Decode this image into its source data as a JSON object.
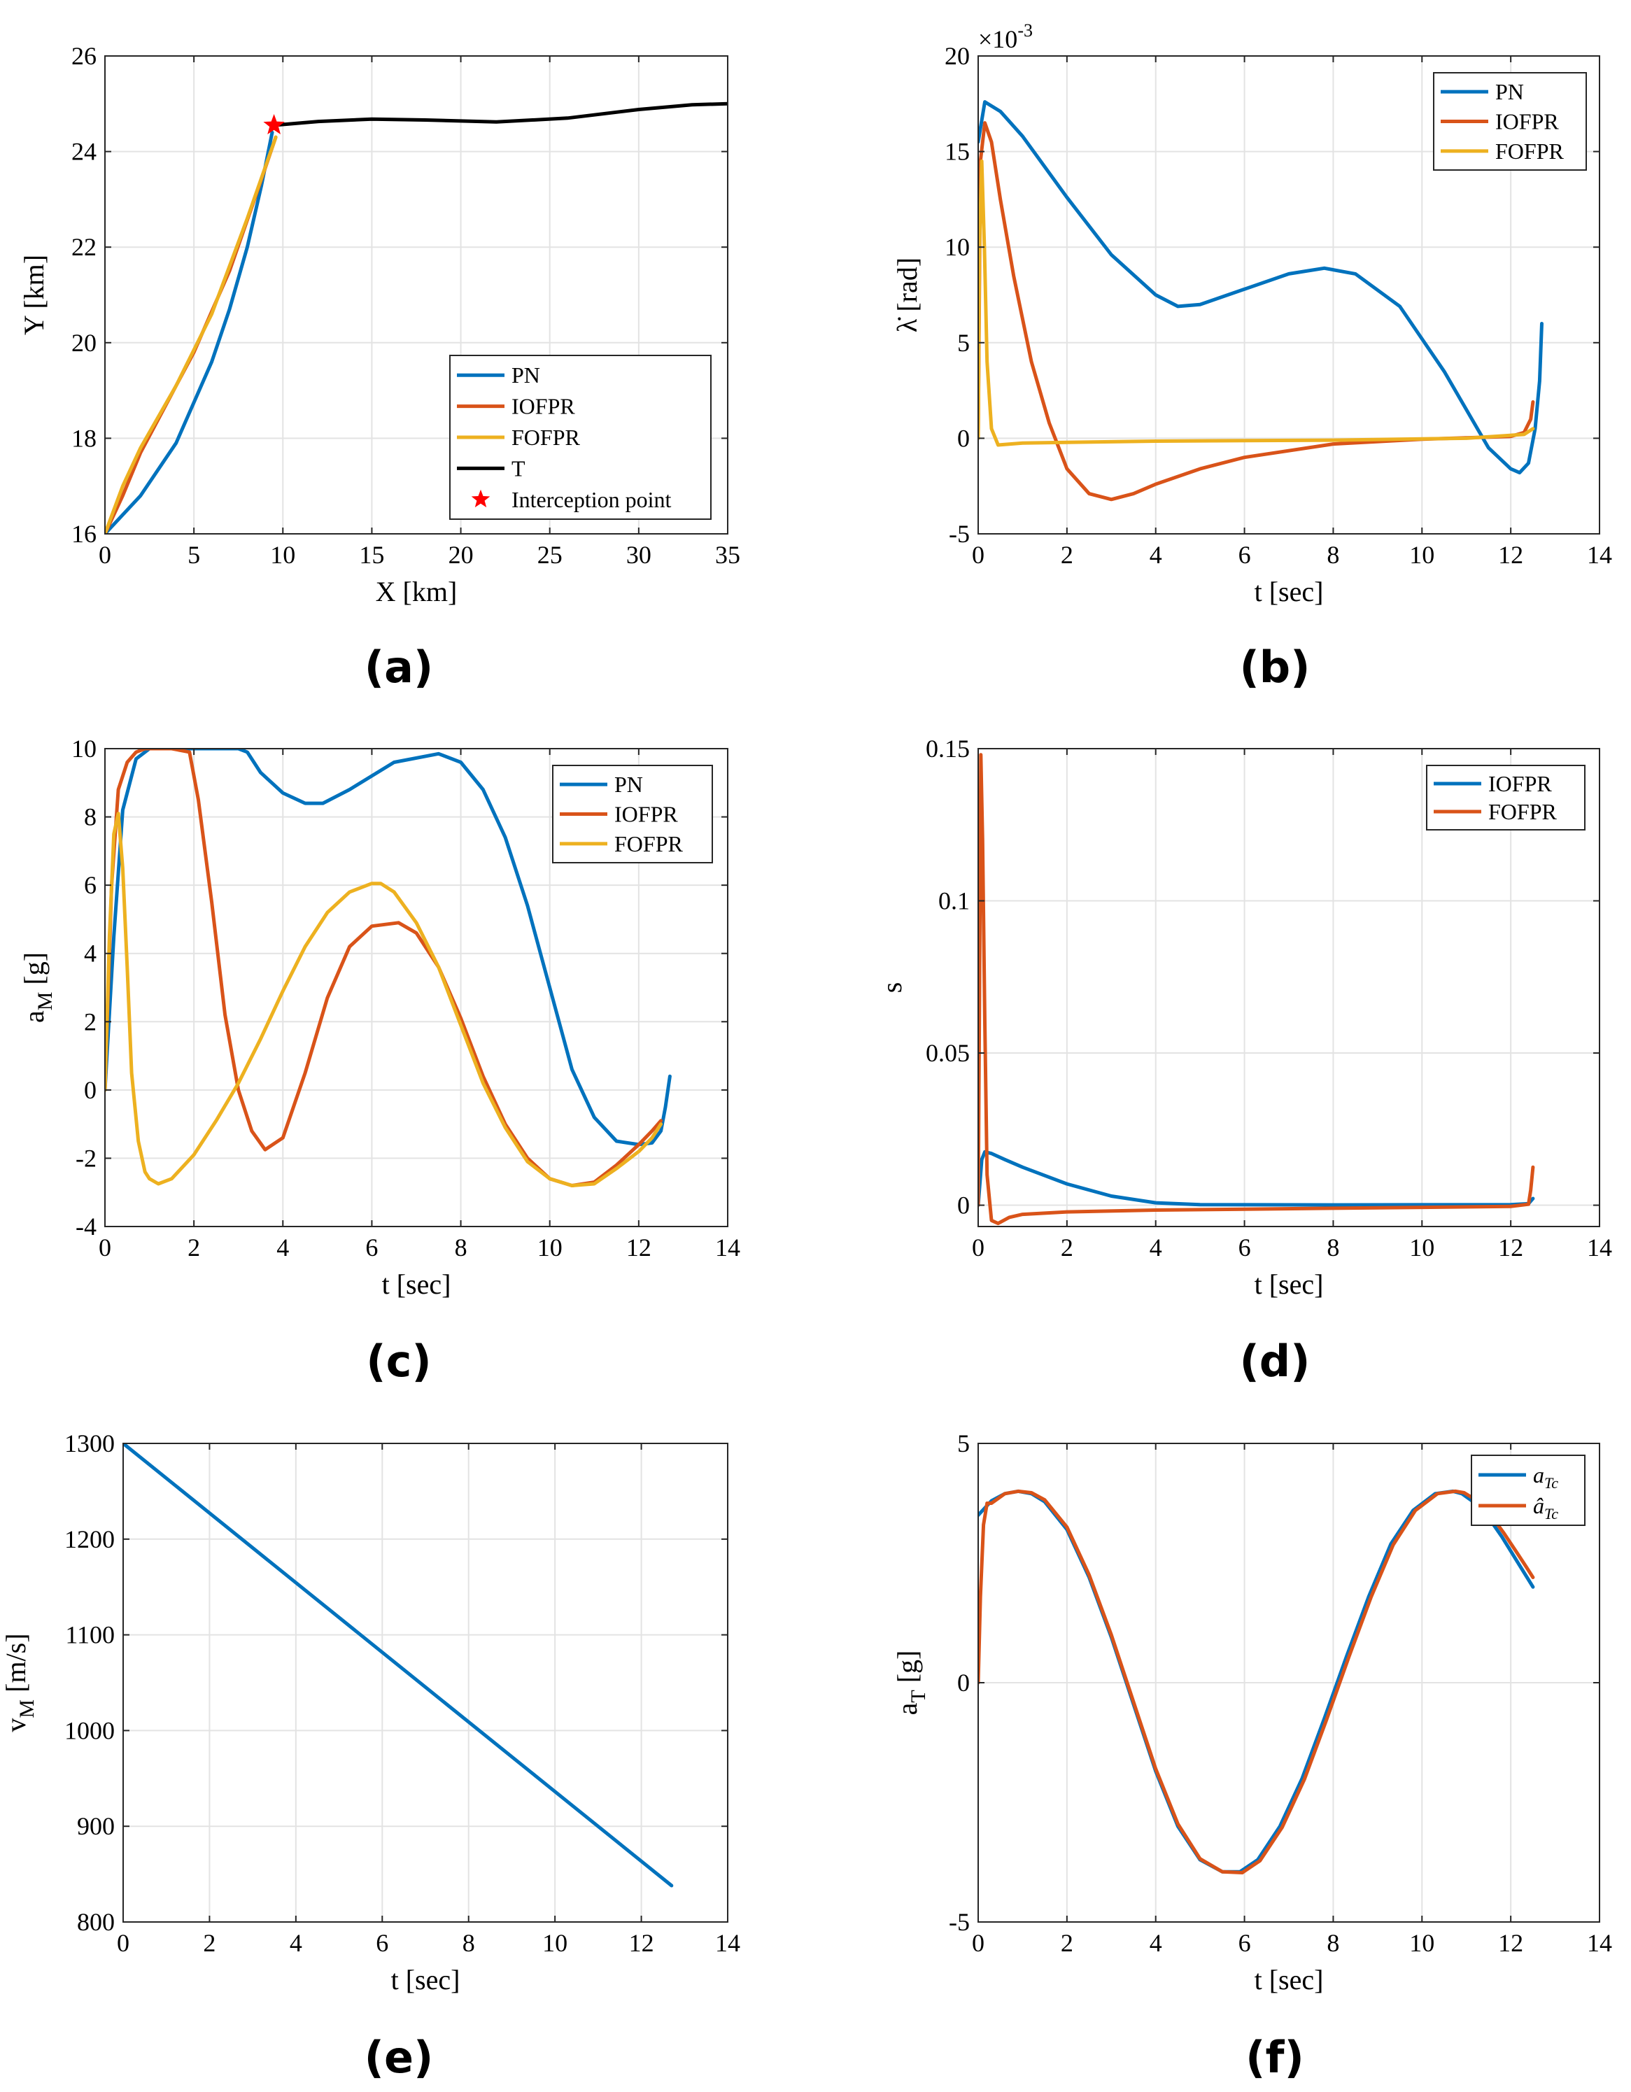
{
  "colors": {
    "blue": "#0072BD",
    "orange": "#D95319",
    "yellow": "#EDB120",
    "black": "#000000",
    "red": "#FF0000",
    "grid": "#E3E3E3"
  },
  "chart_data": [
    {
      "id": "a",
      "label": "(a)",
      "type": "line",
      "xlabel": "X [km]",
      "ylabel": "Y [km]",
      "xlim": [
        0,
        35
      ],
      "ylim": [
        16,
        26
      ],
      "xticks": [
        0,
        5,
        10,
        15,
        20,
        25,
        30,
        35
      ],
      "yticks": [
        16,
        18,
        20,
        22,
        24,
        26
      ],
      "grid": true,
      "legend_position": "bottom-right",
      "series": [
        {
          "name": "PN",
          "color": "blue",
          "x": [
            0,
            2,
            4,
            6,
            7,
            8,
            8.8,
            9.4
          ],
          "y": [
            16,
            16.8,
            17.9,
            19.6,
            20.7,
            22.0,
            23.3,
            24.4
          ]
        },
        {
          "name": "IOFPR",
          "color": "orange",
          "x": [
            0,
            1,
            2,
            3,
            5,
            7,
            8.5,
            9.6
          ],
          "y": [
            16,
            16.8,
            17.7,
            18.4,
            19.8,
            21.5,
            23.1,
            24.3
          ]
        },
        {
          "name": "FOFPR",
          "color": "yellow",
          "x": [
            0,
            1,
            2,
            4,
            6,
            8,
            9.6
          ],
          "y": [
            16,
            17.0,
            17.8,
            19.1,
            20.6,
            22.6,
            24.3
          ]
        },
        {
          "name": "T",
          "color": "black",
          "x": [
            9.5,
            12,
            15,
            18,
            22,
            26,
            30,
            33,
            35
          ],
          "y": [
            24.55,
            24.63,
            24.68,
            24.66,
            24.62,
            24.7,
            24.88,
            24.98,
            25.0
          ]
        },
        {
          "name": "Interception point",
          "color": "red",
          "marker": "star",
          "x": [
            9.5
          ],
          "y": [
            24.55
          ]
        }
      ]
    },
    {
      "id": "b",
      "label": "(b)",
      "type": "line",
      "xlabel": "t [sec]",
      "ylabel": "λ̇ [rad]",
      "exponent": "×10",
      "exponent_power": "-3",
      "xlim": [
        0,
        14
      ],
      "ylim": [
        -5,
        20
      ],
      "xticks": [
        0,
        2,
        4,
        6,
        8,
        10,
        12,
        14
      ],
      "yticks": [
        -5,
        0,
        5,
        10,
        15,
        20
      ],
      "grid": true,
      "legend_position": "top-right",
      "series": [
        {
          "name": "PN",
          "color": "blue",
          "x": [
            0,
            0.15,
            0.5,
            1,
            2,
            3,
            4,
            4.5,
            5,
            6,
            7,
            7.8,
            8.5,
            9.5,
            10.5,
            11.5,
            12,
            12.2,
            12.4,
            12.55,
            12.65,
            12.7
          ],
          "y": [
            15.5,
            17.6,
            17.1,
            15.8,
            12.6,
            9.6,
            7.5,
            6.9,
            7.0,
            7.8,
            8.6,
            8.9,
            8.6,
            6.9,
            3.5,
            -0.5,
            -1.6,
            -1.8,
            -1.3,
            0.5,
            3.0,
            6.0
          ]
        },
        {
          "name": "IOFPR",
          "color": "orange",
          "x": [
            0,
            0.05,
            0.15,
            0.3,
            0.5,
            0.8,
            1.2,
            1.6,
            2,
            2.5,
            3,
            3.5,
            4,
            5,
            6,
            8,
            10,
            12,
            12.3,
            12.45,
            12.5
          ],
          "y": [
            0,
            14.5,
            16.5,
            15.5,
            12.5,
            8.5,
            4.0,
            0.8,
            -1.6,
            -2.9,
            -3.2,
            -2.9,
            -2.4,
            -1.6,
            -1.0,
            -0.3,
            -0.05,
            0.1,
            0.3,
            1.0,
            1.9
          ]
        },
        {
          "name": "FOFPR",
          "color": "yellow",
          "x": [
            0,
            0.03,
            0.08,
            0.14,
            0.2,
            0.3,
            0.45,
            1,
            4,
            8,
            11,
            12.3,
            12.5
          ],
          "y": [
            0,
            10,
            14.5,
            10,
            4,
            0.5,
            -0.35,
            -0.25,
            -0.15,
            -0.1,
            0,
            0.2,
            0.5
          ]
        }
      ]
    },
    {
      "id": "c",
      "label": "(c)",
      "type": "line",
      "xlabel": "t [sec]",
      "ylabel": "a",
      "ylabel_sub": "M",
      "ylabel_unit": " [g]",
      "xlim": [
        0,
        14
      ],
      "ylim": [
        -4,
        10
      ],
      "xticks": [
        0,
        2,
        4,
        6,
        8,
        10,
        12,
        14
      ],
      "yticks": [
        -4,
        -2,
        0,
        2,
        4,
        6,
        8,
        10
      ],
      "grid": true,
      "legend_position": "top-right",
      "series": [
        {
          "name": "PN",
          "color": "blue",
          "x": [
            0,
            0.2,
            0.4,
            0.7,
            1.0,
            1.5,
            2,
            3,
            3.2,
            3.5,
            4,
            4.5,
            4.9,
            5.5,
            6.5,
            7.5,
            8,
            8.5,
            9,
            9.5,
            10,
            10.5,
            11,
            11.5,
            12,
            12.3,
            12.5,
            12.6,
            12.7
          ],
          "y": [
            0,
            4.5,
            8.2,
            9.7,
            10,
            10,
            10,
            10,
            9.9,
            9.3,
            8.7,
            8.4,
            8.4,
            8.8,
            9.6,
            9.85,
            9.6,
            8.8,
            7.4,
            5.4,
            3.0,
            0.6,
            -0.8,
            -1.5,
            -1.6,
            -1.55,
            -1.2,
            -0.5,
            0.4
          ]
        },
        {
          "name": "IOFPR",
          "color": "orange",
          "x": [
            0,
            0.15,
            0.3,
            0.5,
            0.7,
            0.9,
            1.2,
            1.5,
            1.9,
            2.1,
            2.4,
            2.7,
            3.0,
            3.3,
            3.6,
            4.0,
            4.5,
            5.0,
            5.5,
            6.0,
            6.6,
            7.0,
            7.5,
            8.0,
            8.5,
            9.0,
            9.5,
            10.0,
            10.5,
            11.0,
            11.5,
            12.0,
            12.3,
            12.5
          ],
          "y": [
            0,
            6,
            8.8,
            9.6,
            9.9,
            10,
            10,
            10,
            9.9,
            8.5,
            5.5,
            2.2,
            0,
            -1.2,
            -1.75,
            -1.4,
            0.5,
            2.7,
            4.2,
            4.8,
            4.9,
            4.6,
            3.6,
            2.1,
            0.4,
            -1.0,
            -2.0,
            -2.6,
            -2.8,
            -2.7,
            -2.2,
            -1.6,
            -1.2,
            -0.9
          ]
        },
        {
          "name": "FOFPR",
          "color": "yellow",
          "x": [
            0,
            0.1,
            0.2,
            0.3,
            0.4,
            0.5,
            0.6,
            0.75,
            0.9,
            1.0,
            1.2,
            1.5,
            2.0,
            2.5,
            3.0,
            3.5,
            4.0,
            4.5,
            5.0,
            5.5,
            6.0,
            6.2,
            6.5,
            7.0,
            7.5,
            8.0,
            8.5,
            9.0,
            9.5,
            10.0,
            10.5,
            11.0,
            11.5,
            12.0,
            12.3,
            12.5
          ],
          "y": [
            0,
            4.5,
            7.5,
            8.1,
            6.5,
            3.6,
            0.5,
            -1.5,
            -2.4,
            -2.6,
            -2.75,
            -2.6,
            -1.9,
            -0.9,
            0.2,
            1.5,
            2.9,
            4.2,
            5.2,
            5.8,
            6.05,
            6.05,
            5.8,
            4.9,
            3.6,
            1.9,
            0.2,
            -1.1,
            -2.1,
            -2.6,
            -2.8,
            -2.75,
            -2.3,
            -1.8,
            -1.4,
            -1.0
          ]
        }
      ]
    },
    {
      "id": "d",
      "label": "(d)",
      "type": "line",
      "xlabel": "t [sec]",
      "ylabel": "s",
      "xlim": [
        0,
        14
      ],
      "ylim": [
        -0.007,
        0.15
      ],
      "xticks": [
        0,
        2,
        4,
        6,
        8,
        10,
        12,
        14
      ],
      "yticks": [
        0,
        0.05,
        0.1,
        0.15
      ],
      "grid": true,
      "legend_position": "top-right",
      "series": [
        {
          "name": "IOFPR",
          "color": "blue",
          "x": [
            0,
            0.08,
            0.15,
            0.3,
            0.6,
            1,
            2,
            3,
            4,
            5,
            8,
            12,
            12.4,
            12.5
          ],
          "y": [
            0,
            0.015,
            0.0175,
            0.017,
            0.015,
            0.0125,
            0.007,
            0.003,
            0.0008,
            0.0002,
            0.0001,
            0.0002,
            0.0005,
            0.0022
          ]
        },
        {
          "name": "FOFPR",
          "color": "orange",
          "x": [
            0,
            0.03,
            0.06,
            0.1,
            0.15,
            0.2,
            0.3,
            0.45,
            0.7,
            1,
            2,
            4,
            8,
            12,
            12.4,
            12.45,
            12.5
          ],
          "y": [
            0,
            0.07,
            0.148,
            0.12,
            0.06,
            0.01,
            -0.005,
            -0.006,
            -0.004,
            -0.003,
            -0.0022,
            -0.0016,
            -0.001,
            -0.0004,
            0.0003,
            0.005,
            0.0125
          ]
        }
      ]
    },
    {
      "id": "e",
      "label": "(e)",
      "type": "line",
      "xlabel": "t [sec]",
      "ylabel": "v",
      "ylabel_sub": "M",
      "ylabel_unit": " [m/s]",
      "xlim": [
        0,
        14
      ],
      "ylim": [
        800,
        1300
      ],
      "xticks": [
        0,
        2,
        4,
        6,
        8,
        10,
        12,
        14
      ],
      "yticks": [
        800,
        900,
        1000,
        1100,
        1200,
        1300
      ],
      "grid": true,
      "series": [
        {
          "name": "v_M",
          "color": "blue",
          "x": [
            0,
            12.7
          ],
          "y": [
            1300,
            838
          ]
        }
      ]
    },
    {
      "id": "f",
      "label": "(f)",
      "type": "line",
      "xlabel": "t [sec]",
      "ylabel": "a",
      "ylabel_sub": "T",
      "ylabel_unit": " [g]",
      "xlim": [
        0,
        14
      ],
      "ylim": [
        -5,
        5
      ],
      "xticks": [
        0,
        2,
        4,
        6,
        8,
        10,
        12,
        14
      ],
      "yticks": [
        -5,
        0,
        5
      ],
      "grid": true,
      "legend_position": "top-right",
      "legend_labels": [
        {
          "base": "a",
          "sub": "Tc"
        },
        {
          "base": "â",
          "sub": "Tc"
        }
      ],
      "series": [
        {
          "name": "a_Tc",
          "color": "blue",
          "x": [
            0,
            0.3,
            0.6,
            0.9,
            1.2,
            1.5,
            2.0,
            2.5,
            3.0,
            3.5,
            4.0,
            4.5,
            5.0,
            5.5,
            5.9,
            6.3,
            6.8,
            7.3,
            7.8,
            8.3,
            8.8,
            9.3,
            9.8,
            10.3,
            10.7,
            10.9,
            11.2,
            11.5,
            11.8,
            12.1,
            12.3,
            12.5
          ],
          "y": [
            3.5,
            3.8,
            3.95,
            4.0,
            3.95,
            3.78,
            3.2,
            2.2,
            0.95,
            -0.45,
            -1.85,
            -3.0,
            -3.7,
            -3.95,
            -3.95,
            -3.7,
            -3.0,
            -2.0,
            -0.75,
            0.55,
            1.8,
            2.9,
            3.6,
            3.95,
            4.0,
            3.95,
            3.75,
            3.45,
            3.05,
            2.6,
            2.3,
            2.0
          ]
        },
        {
          "name": "â_Tc",
          "color": "orange",
          "x": [
            0,
            0.05,
            0.12,
            0.2,
            0.3,
            0.45,
            0.6,
            0.9,
            1.2,
            1.5,
            2.0,
            2.5,
            3.0,
            3.5,
            4.0,
            4.5,
            5.0,
            5.5,
            5.95,
            6.35,
            6.85,
            7.35,
            7.85,
            8.35,
            8.85,
            9.35,
            9.85,
            10.35,
            10.75,
            10.95,
            11.25,
            11.55,
            11.85,
            12.15,
            12.35,
            12.5
          ],
          "y": [
            0,
            1.8,
            3.3,
            3.75,
            3.75,
            3.85,
            3.95,
            4.0,
            3.97,
            3.82,
            3.25,
            2.25,
            1.0,
            -0.4,
            -1.8,
            -2.95,
            -3.68,
            -3.95,
            -3.97,
            -3.72,
            -3.02,
            -2.02,
            -0.77,
            0.53,
            1.78,
            2.88,
            3.6,
            3.95,
            4.0,
            3.97,
            3.8,
            3.5,
            3.12,
            2.7,
            2.42,
            2.2
          ]
        }
      ]
    }
  ]
}
